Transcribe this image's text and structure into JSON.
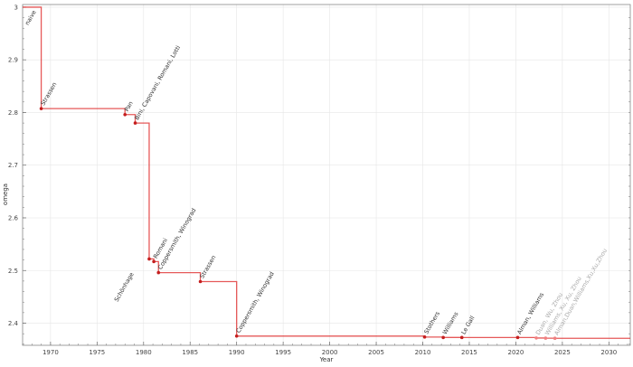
{
  "chart_data": {
    "type": "line",
    "style": "step-post",
    "title": "",
    "xlabel": "Year",
    "ylabel": "omega",
    "xlim": [
      1967,
      2032.3
    ],
    "ylim": [
      2.358,
      3.005
    ],
    "xticks": [
      1970,
      1975,
      1980,
      1985,
      1990,
      1995,
      2000,
      2005,
      2010,
      2015,
      2020,
      2025,
      2030
    ],
    "yticks": [
      2.4,
      2.5,
      2.6,
      2.7,
      2.8,
      2.9,
      3
    ],
    "grid": true,
    "line_color": "#e03030",
    "marker_color": "#c41e1e",
    "faded_color": "#f08080",
    "end_year": 2032.3,
    "points": [
      {
        "label": "naive",
        "x": 1967,
        "y": 3.0,
        "marker": false
      },
      {
        "label": "Strassen",
        "x": 1969,
        "y": 2.8074
      },
      {
        "label": "Pan",
        "x": 1978,
        "y": 2.796
      },
      {
        "label": "Bini, Capovani, Romani, Lotti",
        "x": 1979.1,
        "y": 2.78
      },
      {
        "label": "Schönhage",
        "x": 1980.6,
        "y": 2.522
      },
      {
        "label": "Romani",
        "x": 1981.1,
        "y": 2.517
      },
      {
        "label": "Coppersmith, Winograd",
        "x": 1981.6,
        "y": 2.496
      },
      {
        "label": "Strassen",
        "x": 1986.1,
        "y": 2.479
      },
      {
        "label": "Coppersmith, Winograd",
        "x": 1990,
        "y": 2.3755
      },
      {
        "label": "Stothers",
        "x": 2010.2,
        "y": 2.3737
      },
      {
        "label": "Williams",
        "x": 2012.2,
        "y": 2.3729
      },
      {
        "label": "Le Gall",
        "x": 2014.2,
        "y": 2.37286
      },
      {
        "label": "Alman, Williams",
        "x": 2020.2,
        "y": 2.37286
      },
      {
        "label": "Duan, Wu, Zhou",
        "x": 2022.2,
        "y": 2.371866,
        "faded": true
      },
      {
        "label": "Williams, Xu, Xu, Zhou",
        "x": 2023.2,
        "y": 2.371552,
        "faded": true
      },
      {
        "label": "Alman,Duan,Williams,Xu,Xu,Zhou",
        "x": 2024.2,
        "y": 2.371339,
        "faded": true
      }
    ]
  }
}
